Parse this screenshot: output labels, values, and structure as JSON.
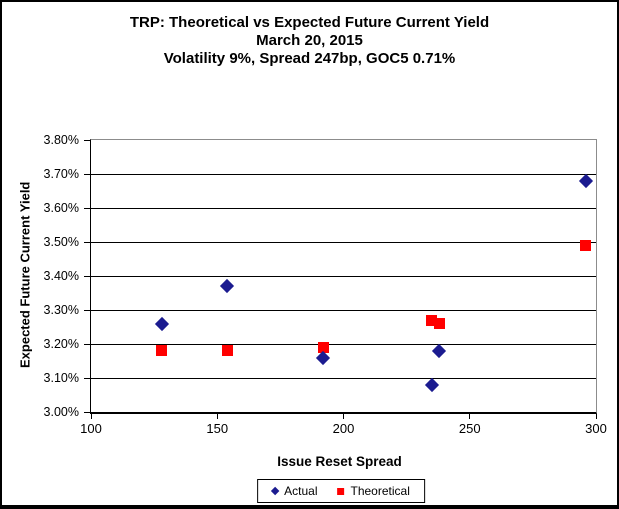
{
  "chart_data": {
    "type": "scatter",
    "title": "TRP: Theoretical vs Expected Future Current Yield",
    "subtitle_lines": [
      "March 20, 2015",
      "Volatility 9%, Spread 247bp, GOC5 0.71%"
    ],
    "xlabel": "Issue Reset Spread",
    "ylabel": "Expected Future Current Yield",
    "xlim": [
      100,
      300
    ],
    "ylim": [
      3.0,
      3.8
    ],
    "xticks": [
      100,
      150,
      200,
      250,
      300
    ],
    "yticks": [
      {
        "value": 3.0,
        "label": "3.00%"
      },
      {
        "value": 3.1,
        "label": "3.10%"
      },
      {
        "value": 3.2,
        "label": "3.20%"
      },
      {
        "value": 3.3,
        "label": "3.30%"
      },
      {
        "value": 3.4,
        "label": "3.40%"
      },
      {
        "value": 3.5,
        "label": "3.50%"
      },
      {
        "value": 3.6,
        "label": "3.60%"
      },
      {
        "value": 3.7,
        "label": "3.70%"
      },
      {
        "value": 3.8,
        "label": "3.80%"
      }
    ],
    "grid": "horizontal",
    "legend_position": "bottom",
    "series": [
      {
        "name": "Actual",
        "marker": "diamond",
        "color": "#1b1b90",
        "points": [
          [
            128,
            3.26
          ],
          [
            154,
            3.37
          ],
          [
            192,
            3.16
          ],
          [
            235,
            3.08
          ],
          [
            238,
            3.18
          ],
          [
            296,
            3.68
          ]
        ]
      },
      {
        "name": "Theoretical",
        "marker": "square",
        "color": "#ff0000",
        "points": [
          [
            128,
            3.18
          ],
          [
            154,
            3.18
          ],
          [
            192,
            3.19
          ],
          [
            235,
            3.27
          ],
          [
            238,
            3.26
          ],
          [
            296,
            3.49
          ]
        ]
      }
    ],
    "axis_color": "#000000",
    "plot_border_color": "#8c8c8c"
  }
}
